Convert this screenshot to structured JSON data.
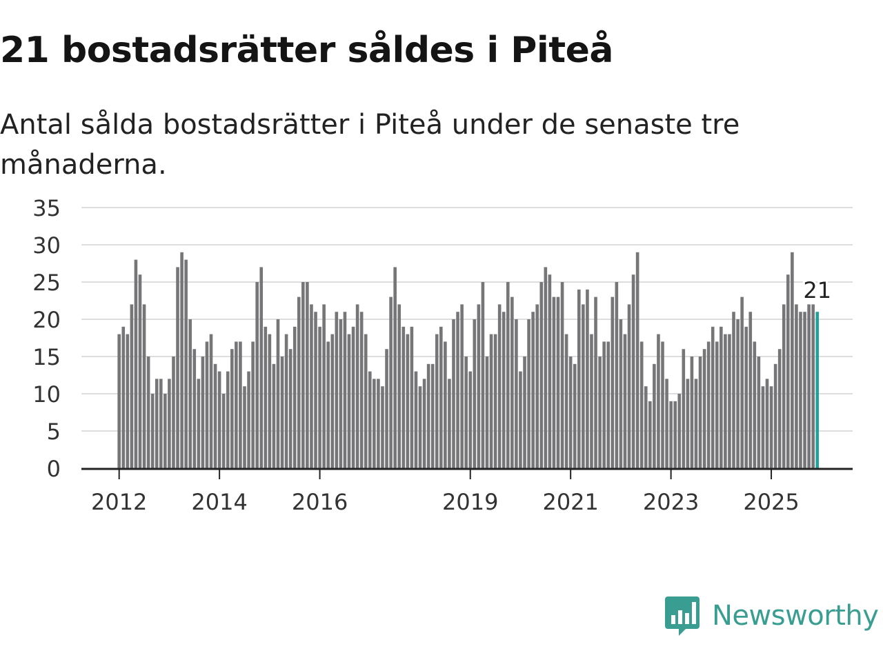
{
  "title": "21 bostadsrätter såldes i Piteå",
  "subtitle": "Antal sålda bostadsrätter i Piteå under de senaste tre månaderna.",
  "brand": {
    "name": "Newsworthy"
  },
  "colors": {
    "bar": "#767578",
    "highlight": "#21a19a",
    "grid": "#dddddd",
    "axis": "#222222",
    "brand": "#3a9d91"
  },
  "chart_data": {
    "type": "bar",
    "title": "21 bostadsrätter såldes i Piteå",
    "xlabel": "",
    "ylabel": "",
    "ylim": [
      0,
      35
    ],
    "yticks": [
      0,
      5,
      10,
      15,
      20,
      25,
      30,
      35
    ],
    "first_month": "2012-01",
    "x_tick_labels": [
      {
        "label": "2012",
        "month_index": 0
      },
      {
        "label": "2014",
        "month_index": 24
      },
      {
        "label": "2016",
        "month_index": 48
      },
      {
        "label": "2019",
        "month_index": 84
      },
      {
        "label": "2021",
        "month_index": 108
      },
      {
        "label": "2023",
        "month_index": 132
      },
      {
        "label": "2025",
        "month_index": 156
      }
    ],
    "highlight_label": "21",
    "values": [
      18,
      19,
      18,
      22,
      28,
      26,
      22,
      15,
      10,
      12,
      12,
      10,
      12,
      15,
      27,
      29,
      28,
      20,
      16,
      12,
      15,
      17,
      18,
      14,
      13,
      10,
      13,
      16,
      17,
      17,
      11,
      13,
      17,
      25,
      27,
      19,
      18,
      14,
      20,
      15,
      18,
      16,
      19,
      23,
      25,
      25,
      22,
      21,
      19,
      22,
      17,
      18,
      21,
      20,
      21,
      18,
      19,
      22,
      21,
      18,
      13,
      12,
      12,
      11,
      16,
      23,
      27,
      22,
      19,
      18,
      19,
      13,
      11,
      12,
      14,
      14,
      18,
      19,
      17,
      12,
      20,
      21,
      22,
      15,
      13,
      20,
      22,
      25,
      15,
      18,
      18,
      22,
      21,
      25,
      23,
      20,
      13,
      15,
      20,
      21,
      22,
      25,
      27,
      26,
      23,
      23,
      25,
      18,
      15,
      14,
      24,
      22,
      24,
      18,
      23,
      15,
      17,
      17,
      23,
      25,
      20,
      18,
      22,
      26,
      29,
      17,
      11,
      9,
      14,
      18,
      17,
      12,
      9,
      9,
      10,
      16,
      12,
      15,
      12,
      15,
      16,
      17,
      19,
      17,
      19,
      18,
      18,
      21,
      20,
      23,
      19,
      21,
      17,
      15,
      11,
      12,
      11,
      14,
      16,
      22,
      26,
      29,
      22,
      21,
      21,
      22,
      22,
      21
    ]
  }
}
